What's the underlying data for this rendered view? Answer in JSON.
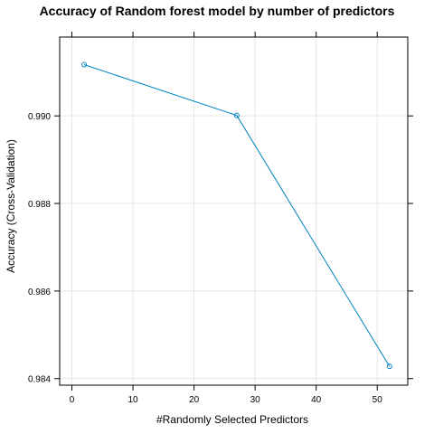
{
  "chart_data": {
    "type": "line",
    "title": "Accuracy of Random forest model by number of predictors",
    "xlabel": "#Randomly Selected Predictors",
    "ylabel": "Accuracy (Cross-Validation)",
    "xlim": [
      -2,
      55
    ],
    "ylim": [
      0.98385,
      0.9918
    ],
    "x_ticks": [
      0,
      10,
      20,
      30,
      40,
      50
    ],
    "y_ticks": [
      0.984,
      0.986,
      0.988,
      0.99
    ],
    "x_tick_labels": [
      "0",
      "10",
      "20",
      "30",
      "40",
      "50"
    ],
    "y_tick_labels": [
      "0.984",
      "0.986",
      "0.988",
      "0.990"
    ],
    "grid": true,
    "series": [
      {
        "x": [
          2,
          27,
          52
        ],
        "y": [
          0.99117,
          0.99001,
          0.98428
        ],
        "color": "#0080c0"
      }
    ]
  }
}
